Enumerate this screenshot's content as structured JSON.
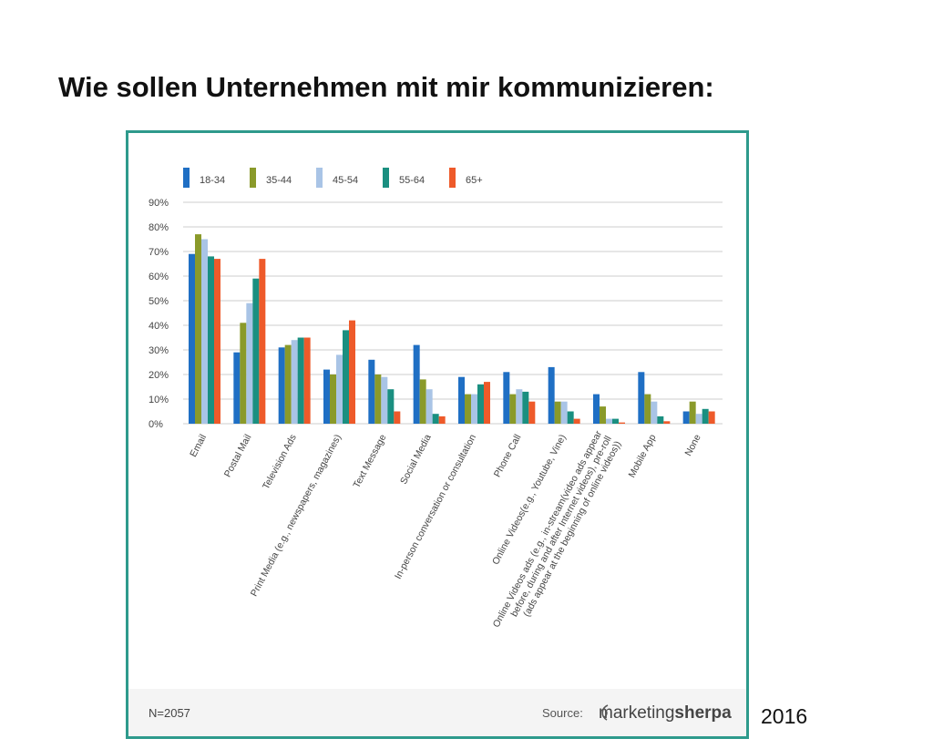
{
  "title": "Wie sollen Unternehmen mit mir kommunizieren:",
  "year": "2016",
  "footer": {
    "sample": "N=2057",
    "source_label": "Source:",
    "brand_light": "marketing",
    "brand_bold": "sherpa"
  },
  "colors": {
    "frame": "#2e9a8c",
    "grid": "#cccccc",
    "text": "#444444"
  },
  "chart_data": {
    "type": "bar",
    "ylim": [
      0,
      90
    ],
    "yticks": [
      0,
      10,
      20,
      30,
      40,
      50,
      60,
      70,
      80,
      90
    ],
    "ytick_labels": [
      "0%",
      "10%",
      "20%",
      "30%",
      "40%",
      "50%",
      "60%",
      "70%",
      "80%",
      "90%"
    ],
    "grid": true,
    "legend_position": "top-left",
    "categories": [
      [
        "Email"
      ],
      [
        "Postal Mail"
      ],
      [
        "Television Ads"
      ],
      [
        "Print Media (e.g., newspapers, magazines)"
      ],
      [
        "Text Message"
      ],
      [
        "Social Media"
      ],
      [
        "In-person conversation or consultation"
      ],
      [
        "Phone Call"
      ],
      [
        "Online Videos(e.g., Youtube, Vine)"
      ],
      [
        "Online Videos ads (e.g., in-stream(video ads appear",
        "before, during and after Internet videos), pre-roll",
        "(ads appear at the beginning of online videos))"
      ],
      [
        "Mobile App"
      ],
      [
        "None"
      ]
    ],
    "series": [
      {
        "name": "18-34",
        "color": "#1f6fc4",
        "values": [
          69,
          29,
          31,
          22,
          26,
          32,
          19,
          21,
          23,
          12,
          21,
          5
        ]
      },
      {
        "name": "35-44",
        "color": "#8a9a2a",
        "values": [
          77,
          41,
          32,
          20,
          20,
          18,
          12,
          12,
          9,
          7,
          12,
          9
        ]
      },
      {
        "name": "45-54",
        "color": "#a9c4e6",
        "values": [
          75,
          49,
          34,
          28,
          19,
          14,
          12,
          14,
          9,
          2,
          9,
          4
        ]
      },
      {
        "name": "55-64",
        "color": "#1a8f80",
        "values": [
          68,
          59,
          35,
          38,
          14,
          4,
          16,
          13,
          5,
          2,
          3,
          6
        ]
      },
      {
        "name": "65+",
        "color": "#ee5a2a",
        "values": [
          67,
          67,
          35,
          42,
          5,
          3,
          17,
          9,
          2,
          0.5,
          1,
          5
        ]
      }
    ]
  }
}
